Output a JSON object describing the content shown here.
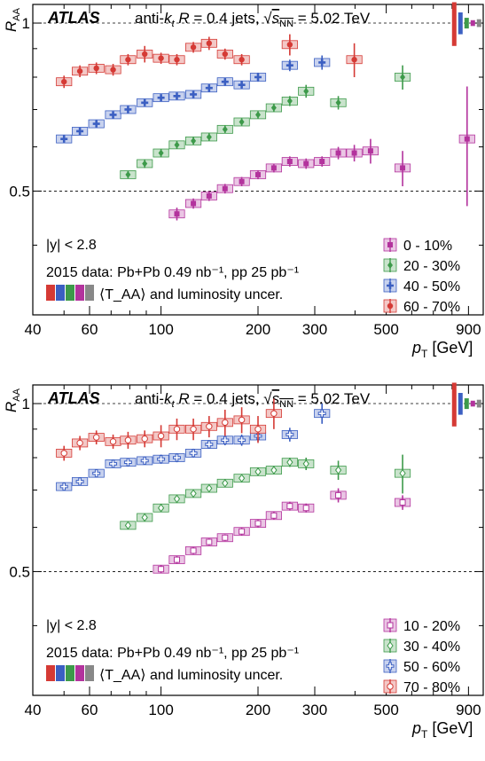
{
  "chart_data": [
    {
      "type": "scatter",
      "title": "ATLAS",
      "subtitle": "anti-k_t R = 0.4 jets, √s_NN = 5.02 TeV",
      "xlabel": "p_T [GeV]",
      "ylabel": "R_AA",
      "x_scale": "log",
      "xlim": [
        40,
        1000
      ],
      "ylim": [
        0.3,
        1.08
      ],
      "y_scale": "log",
      "x_ticks": [
        "40",
        "60",
        "100",
        "200",
        "300",
        "500",
        "900"
      ],
      "x_tick_values": [
        40,
        60,
        100,
        200,
        300,
        500,
        900
      ],
      "y_ticks": [
        "1",
        "0.5"
      ],
      "y_tick_values": [
        1,
        0.5
      ],
      "reference_lines": [
        1,
        0.5
      ],
      "annotations": {
        "rapidity": "|y| < 2.8",
        "data_line": "2015 data: Pb+Pb 0.49 nb⁻¹, pp 25 pb⁻¹",
        "uncert_line": "⟨T_AA⟩ and luminosity uncer."
      },
      "legend_position": "bottom-right",
      "series": [
        {
          "name": "0 - 10%",
          "color": "#b3339d",
          "marker": "square-filled",
          "x": [
            112,
            126,
            141,
            158,
            178,
            200,
            224,
            251,
            282,
            316,
            355,
            398,
            447,
            562,
            891
          ],
          "y": [
            0.455,
            0.475,
            0.49,
            0.505,
            0.52,
            0.535,
            0.55,
            0.565,
            0.56,
            0.565,
            0.585,
            0.585,
            0.59,
            0.55,
            0.62
          ],
          "err": [
            0.012,
            0.01,
            0.01,
            0.01,
            0.01,
            0.01,
            0.01,
            0.012,
            0.012,
            0.012,
            0.015,
            0.02,
            0.03,
            0.04,
            0.15
          ]
        },
        {
          "name": "20 - 30%",
          "color": "#3d9a4a",
          "marker": "diamond-filled",
          "x": [
            79,
            89,
            100,
            112,
            126,
            141,
            158,
            178,
            200,
            224,
            251,
            282,
            355,
            562
          ],
          "y": [
            0.535,
            0.56,
            0.585,
            0.605,
            0.615,
            0.625,
            0.645,
            0.665,
            0.685,
            0.705,
            0.725,
            0.755,
            0.72,
            0.8
          ],
          "err": [
            0.008,
            0.01,
            0.01,
            0.01,
            0.01,
            0.01,
            0.01,
            0.01,
            0.01,
            0.012,
            0.015,
            0.02,
            0.02,
            0.04
          ]
        },
        {
          "name": "40 - 50%",
          "color": "#3b5fc2",
          "marker": "cross",
          "x": [
            50,
            56,
            63,
            71,
            79,
            89,
            100,
            112,
            126,
            141,
            158,
            178,
            200,
            251,
            316
          ],
          "y": [
            0.62,
            0.64,
            0.66,
            0.685,
            0.7,
            0.72,
            0.735,
            0.74,
            0.745,
            0.765,
            0.785,
            0.775,
            0.8,
            0.84,
            0.85
          ],
          "err": [
            0.01,
            0.01,
            0.01,
            0.01,
            0.01,
            0.01,
            0.01,
            0.01,
            0.01,
            0.012,
            0.012,
            0.012,
            0.015,
            0.02,
            0.025
          ]
        },
        {
          "name": "60 - 70%",
          "color": "#d53a35",
          "marker": "circle-filled",
          "x": [
            50,
            56,
            63,
            71,
            79,
            89,
            100,
            112,
            126,
            141,
            158,
            178,
            251,
            398
          ],
          "y": [
            0.785,
            0.82,
            0.83,
            0.825,
            0.86,
            0.88,
            0.865,
            0.86,
            0.905,
            0.92,
            0.88,
            0.86,
            0.915,
            0.86
          ],
          "err": [
            0.02,
            0.02,
            0.02,
            0.02,
            0.02,
            0.03,
            0.02,
            0.02,
            0.02,
            0.025,
            0.02,
            0.02,
            0.04,
            0.06
          ]
        }
      ]
    },
    {
      "type": "scatter",
      "title": "ATLAS",
      "subtitle": "anti-k_t R = 0.4 jets, √s_NN = 5.02 TeV",
      "xlabel": "p_T [GeV]",
      "ylabel": "R_AA",
      "x_scale": "log",
      "xlim": [
        40,
        1000
      ],
      "ylim": [
        0.3,
        1.08
      ],
      "y_scale": "log",
      "x_ticks": [
        "40",
        "60",
        "100",
        "200",
        "300",
        "500",
        "900"
      ],
      "x_tick_values": [
        40,
        60,
        100,
        200,
        300,
        500,
        900
      ],
      "y_ticks": [
        "1",
        "0.5"
      ],
      "y_tick_values": [
        1,
        0.5
      ],
      "reference_lines": [
        1,
        0.5
      ],
      "annotations": {
        "rapidity": "|y| < 2.8",
        "data_line": "2015 data: Pb+Pb 0.49 nb⁻¹, pp 25 pb⁻¹",
        "uncert_line": "⟨T_AA⟩ and luminosity uncer."
      },
      "legend_position": "bottom-right",
      "series": [
        {
          "name": "10 - 20%",
          "color": "#b3339d",
          "marker": "square-open",
          "x": [
            100,
            112,
            126,
            141,
            158,
            178,
            200,
            224,
            251,
            282,
            355,
            562
          ],
          "y": [
            0.505,
            0.525,
            0.545,
            0.565,
            0.575,
            0.59,
            0.61,
            0.63,
            0.655,
            0.65,
            0.685,
            0.665
          ],
          "err": [
            0.008,
            0.008,
            0.008,
            0.008,
            0.008,
            0.01,
            0.01,
            0.01,
            0.012,
            0.012,
            0.02,
            0.02
          ]
        },
        {
          "name": "30 - 40%",
          "color": "#3d9a4a",
          "marker": "diamond-open",
          "x": [
            79,
            89,
            100,
            112,
            126,
            141,
            158,
            178,
            200,
            224,
            251,
            282,
            355,
            562
          ],
          "y": [
            0.605,
            0.625,
            0.65,
            0.675,
            0.69,
            0.705,
            0.72,
            0.735,
            0.755,
            0.76,
            0.785,
            0.78,
            0.76,
            0.75
          ],
          "err": [
            0.008,
            0.01,
            0.01,
            0.01,
            0.01,
            0.01,
            0.01,
            0.01,
            0.012,
            0.012,
            0.015,
            0.02,
            0.03,
            0.06
          ]
        },
        {
          "name": "50 - 60%",
          "color": "#3b5fc2",
          "marker": "cross-open",
          "x": [
            50,
            56,
            63,
            71,
            79,
            89,
            100,
            112,
            126,
            141,
            158,
            178,
            200,
            251,
            316
          ],
          "y": [
            0.71,
            0.725,
            0.75,
            0.78,
            0.785,
            0.79,
            0.795,
            0.8,
            0.815,
            0.845,
            0.86,
            0.86,
            0.875,
            0.88,
            0.96
          ],
          "err": [
            0.01,
            0.012,
            0.012,
            0.012,
            0.012,
            0.012,
            0.015,
            0.015,
            0.015,
            0.015,
            0.018,
            0.02,
            0.02,
            0.025,
            0.04
          ]
        },
        {
          "name": "70 - 80%",
          "color": "#d53a35",
          "marker": "circle-open",
          "x": [
            50,
            56,
            63,
            71,
            79,
            89,
            100,
            112,
            126,
            141,
            158,
            178,
            200,
            224
          ],
          "y": [
            0.815,
            0.85,
            0.87,
            0.855,
            0.86,
            0.865,
            0.875,
            0.9,
            0.9,
            0.91,
            0.925,
            0.935,
            0.9,
            0.96
          ],
          "err": [
            0.025,
            0.025,
            0.025,
            0.025,
            0.03,
            0.03,
            0.04,
            0.04,
            0.04,
            0.04,
            0.05,
            0.05,
            0.05,
            0.06
          ]
        }
      ]
    }
  ]
}
